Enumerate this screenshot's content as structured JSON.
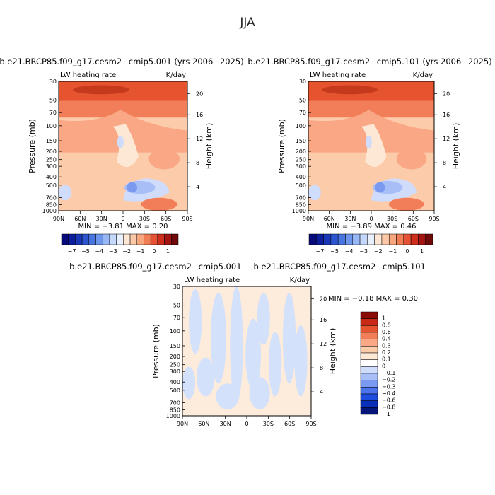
{
  "page": {
    "title": "JJA"
  },
  "colors": {
    "levels": [
      -7,
      -6,
      -5,
      -4.5,
      -4,
      -3.5,
      -3,
      -2.75,
      -2.5,
      -2,
      -1.5,
      -1,
      -0.5,
      0,
      0.5,
      1
    ],
    "panel_bar": [
      "#070b7a",
      "#0d1e9c",
      "#1838b8",
      "#2c55cf",
      "#4975e0",
      "#6d96ec",
      "#98b8f5",
      "#c4d8fb",
      "#e8effd",
      "#fde6d4",
      "#fbc9a8",
      "#f7a67d",
      "#f17d55",
      "#e65235",
      "#ce2e1c",
      "#a31510",
      "#6e0a09"
    ],
    "diff_bar": [
      "#05157a",
      "#0a2fb8",
      "#1e4ce0",
      "#4a73ec",
      "#7a9af2",
      "#a8bef7",
      "#cfdcfb",
      "#ffffff",
      "#fde8d6",
      "#fccbaa",
      "#f9a784",
      "#f27d59",
      "#e6532f",
      "#c92a17",
      "#8b0c06"
    ],
    "contour_fill": [
      "#fde8d6",
      "#fccbaa",
      "#f9a784",
      "#f27d59",
      "#e6532f",
      "#cfdcfb",
      "#a8bef7",
      "#7a9af2"
    ]
  },
  "chart_data": [
    {
      "type": "heatmap",
      "id": "case1",
      "title": "b.e21.BRCP85.f09_g17.cesm2−cmip5.001 (yrs 2006−2025)",
      "left_text": "LW heating rate",
      "right_text": "K/day",
      "xlabel": "",
      "ylabel": "Pressure (mb)",
      "y2label": "Height (km)",
      "xticks": [
        "90N",
        "60N",
        "30N",
        "0",
        "30S",
        "60S",
        "90S"
      ],
      "yticks": [
        {
          "p": 30,
          "label": "30"
        },
        {
          "p": 50,
          "label": "50"
        },
        {
          "p": 70,
          "label": "70"
        },
        {
          "p": 100,
          "label": "100"
        },
        {
          "p": 150,
          "label": "150"
        },
        {
          "p": 200,
          "label": "200"
        },
        {
          "p": 250,
          "label": "250"
        },
        {
          "p": 300,
          "label": "300"
        },
        {
          "p": 400,
          "label": "400"
        },
        {
          "p": 500,
          "label": "500"
        },
        {
          "p": 700,
          "label": "700"
        },
        {
          "p": 850,
          "label": "850"
        },
        {
          "p": 1000,
          "label": "1000"
        }
      ],
      "y2ticks": [
        {
          "km": 20,
          "label": "20"
        },
        {
          "km": 16,
          "label": "16"
        },
        {
          "km": 12,
          "label": "12"
        },
        {
          "km": 8,
          "label": "8"
        },
        {
          "km": 4,
          "label": "4"
        }
      ],
      "ylim": [
        1000,
        30
      ],
      "stats": "MIN =  −3.81   MAX =   0.20",
      "colorbar_labels": [
        "−7",
        "−5",
        "−4",
        "−3",
        "−2",
        "−1",
        "0",
        "1"
      ]
    },
    {
      "type": "heatmap",
      "id": "case2",
      "title": "b.e21.BRCP85.f09_g17.cesm2−cmip5.101 (yrs 2006−2025)",
      "left_text": "LW heating rate",
      "right_text": "K/day",
      "xlabel": "",
      "ylabel": "Pressure (mb)",
      "y2label": "Height (km)",
      "xticks": [
        "90N",
        "60N",
        "30N",
        "0",
        "30S",
        "60S",
        "90S"
      ],
      "yticks": [
        {
          "p": 30,
          "label": "30"
        },
        {
          "p": 50,
          "label": "50"
        },
        {
          "p": 70,
          "label": "70"
        },
        {
          "p": 100,
          "label": "100"
        },
        {
          "p": 150,
          "label": "150"
        },
        {
          "p": 200,
          "label": "200"
        },
        {
          "p": 250,
          "label": "250"
        },
        {
          "p": 300,
          "label": "300"
        },
        {
          "p": 400,
          "label": "400"
        },
        {
          "p": 500,
          "label": "500"
        },
        {
          "p": 700,
          "label": "700"
        },
        {
          "p": 850,
          "label": "850"
        },
        {
          "p": 1000,
          "label": "1000"
        }
      ],
      "y2ticks": [
        {
          "km": 20,
          "label": "20"
        },
        {
          "km": 16,
          "label": "16"
        },
        {
          "km": 12,
          "label": "12"
        },
        {
          "km": 8,
          "label": "8"
        },
        {
          "km": 4,
          "label": "4"
        }
      ],
      "ylim": [
        1000,
        30
      ],
      "stats": "MIN =  −3.89   MAX =   0.46",
      "colorbar_labels": [
        "−7",
        "−5",
        "−4",
        "−3",
        "−2",
        "−1",
        "0",
        "1"
      ]
    },
    {
      "type": "heatmap",
      "id": "diff",
      "title": "b.e21.BRCP85.f09_g17.cesm2−cmip5.001 − b.e21.BRCP85.f09_g17.cesm2−cmip5.101",
      "left_text": "LW heating rate",
      "right_text": "K/day",
      "xlabel": "",
      "ylabel": "Pressure (mb)",
      "y2label": "Height (km)",
      "xticks": [
        "90N",
        "60N",
        "30N",
        "0",
        "30S",
        "60S",
        "90S"
      ],
      "yticks": [
        {
          "p": 30,
          "label": "30"
        },
        {
          "p": 50,
          "label": "50"
        },
        {
          "p": 70,
          "label": "70"
        },
        {
          "p": 100,
          "label": "100"
        },
        {
          "p": 150,
          "label": "150"
        },
        {
          "p": 200,
          "label": "200"
        },
        {
          "p": 250,
          "label": "250"
        },
        {
          "p": 300,
          "label": "300"
        },
        {
          "p": 400,
          "label": "400"
        },
        {
          "p": 500,
          "label": "500"
        },
        {
          "p": 700,
          "label": "700"
        },
        {
          "p": 850,
          "label": "850"
        },
        {
          "p": 1000,
          "label": "1000"
        }
      ],
      "y2ticks": [
        {
          "km": 20,
          "label": "20"
        },
        {
          "km": 16,
          "label": "16"
        },
        {
          "km": 12,
          "label": "12"
        },
        {
          "km": 8,
          "label": "8"
        },
        {
          "km": 4,
          "label": "4"
        }
      ],
      "ylim": [
        1000,
        30
      ],
      "stats": "MIN =  −0.18   MAX =    0.30",
      "colorbar_labels": [
        "1",
        "0.8",
        "0.6",
        "0.4",
        "0.3",
        "0.2",
        "0.1",
        "0",
        "−0.1",
        "−0.2",
        "−0.3",
        "−0.4",
        "−0.6",
        "−0.8",
        "−1"
      ]
    }
  ]
}
